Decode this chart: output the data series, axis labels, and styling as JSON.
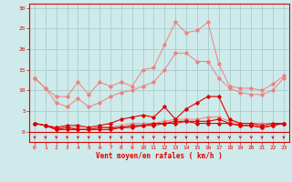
{
  "x": [
    0,
    1,
    2,
    3,
    4,
    5,
    6,
    7,
    8,
    9,
    10,
    11,
    12,
    13,
    14,
    15,
    16,
    17,
    18,
    19,
    20,
    21,
    22,
    23
  ],
  "line1_rafales_max": [
    13,
    10.5,
    8.5,
    8.5,
    12,
    9,
    12,
    11,
    12,
    11,
    15,
    15.5,
    21,
    26.5,
    24,
    24.5,
    26.5,
    16.5,
    11,
    10.5,
    10.5,
    10,
    11.5,
    13.5
  ],
  "line2_vent_max": [
    13,
    10.5,
    7,
    6,
    8,
    6,
    7,
    8.5,
    9.5,
    10,
    11,
    12,
    15,
    19,
    19,
    17,
    17,
    13,
    10.5,
    9.5,
    9,
    9,
    10,
    13
  ],
  "line3_rafales_moy": [
    2,
    1.5,
    1,
    1.5,
    1.5,
    1,
    1.5,
    2,
    3,
    3.5,
    4,
    3.5,
    6,
    3,
    5.5,
    7,
    8.5,
    8.5,
    3,
    2,
    2,
    1.5,
    2,
    2
  ],
  "line4_vent_moy": [
    2,
    1.5,
    0.5,
    1,
    0.5,
    0.5,
    1,
    1,
    1,
    1,
    1.5,
    2,
    2,
    2.5,
    2.5,
    2,
    2,
    2,
    2,
    1.5,
    1.5,
    1,
    1.5,
    2
  ],
  "line5_base1": [
    2,
    1.5,
    1,
    1,
    1,
    0.5,
    1,
    1,
    1.5,
    2,
    2,
    2,
    2.5,
    3,
    3,
    3,
    3.5,
    3.5,
    2.5,
    2,
    2,
    2,
    2,
    2
  ],
  "line6_base2": [
    2,
    1.5,
    0.5,
    0.5,
    0.5,
    0.5,
    0.5,
    0.5,
    1,
    1.5,
    1.5,
    1.5,
    2,
    2,
    2.5,
    2.5,
    2.5,
    3,
    2,
    1.5,
    1.5,
    1,
    1.5,
    2
  ],
  "background_color": "#ceeaea",
  "grid_color": "#a0c8c8",
  "line_pink_color": "#f08080",
  "line_red_color": "#dd0000",
  "xlabel": "Vent moyen/en rafales ( km/h )",
  "yticks": [
    0,
    5,
    10,
    15,
    20,
    25,
    30
  ],
  "ylim": [
    -2.5,
    31
  ],
  "xlim": [
    -0.5,
    23.5
  ]
}
